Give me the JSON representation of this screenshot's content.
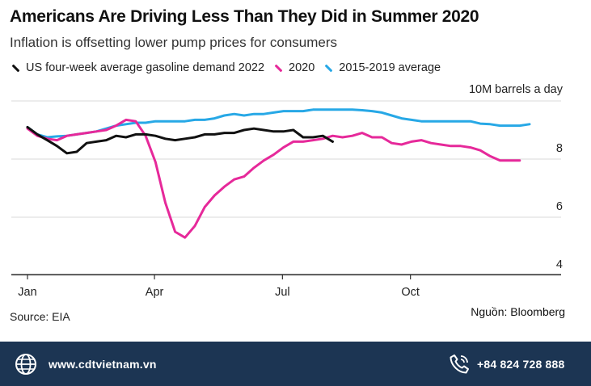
{
  "colors": {
    "us2022": "#111111",
    "y2020": "#e6299a",
    "avg": "#27a8e6",
    "grid": "#d9d9d9",
    "footer_bg": "#1c3553"
  },
  "header": {
    "title": "Americans Are Driving Less Than They Did in Summer 2020",
    "subtitle": "Inflation is offsetting lower pump prices for consumers"
  },
  "footer": {
    "source": "Source: EIA",
    "credit": "Nguồn: Bloomberg",
    "website": "www.cdtvietnam.vn",
    "phone": "+84 824 728 888",
    "website_icon": "globe-icon",
    "phone_icon": "phone-icon"
  },
  "chart_data": {
    "type": "line",
    "title": "Americans Are Driving Less Than They Did in Summer 2020",
    "subtitle": "Inflation is offsetting lower pump prices for consumers",
    "ylabel": "10M barrels a day",
    "unit_label": "10M barrels a day",
    "ylim": [
      3.8,
      10.0
    ],
    "yticks": [
      4,
      6,
      8
    ],
    "xlim": [
      1,
      53
    ],
    "x_unit": "week of year",
    "xticks": [
      {
        "label": "Jan",
        "week": 1
      },
      {
        "label": "Apr",
        "week": 13.9
      },
      {
        "label": "Jul",
        "week": 26.9
      },
      {
        "label": "Oct",
        "week": 39.9
      }
    ],
    "grid": true,
    "legend_position": "top-left",
    "series": [
      {
        "name": "US four-week average gasoline demand 2022",
        "key": "us2022",
        "points": [
          [
            1,
            9.1
          ],
          [
            2,
            8.85
          ],
          [
            3,
            8.65
          ],
          [
            4,
            8.45
          ],
          [
            5,
            8.2
          ],
          [
            6,
            8.25
          ],
          [
            7,
            8.55
          ],
          [
            8,
            8.6
          ],
          [
            9,
            8.65
          ],
          [
            10,
            8.8
          ],
          [
            11,
            8.75
          ],
          [
            12,
            8.85
          ],
          [
            13,
            8.85
          ],
          [
            14,
            8.8
          ],
          [
            15,
            8.7
          ],
          [
            16,
            8.65
          ],
          [
            17,
            8.7
          ],
          [
            18,
            8.75
          ],
          [
            19,
            8.85
          ],
          [
            20,
            8.85
          ],
          [
            21,
            8.9
          ],
          [
            22,
            8.9
          ],
          [
            23,
            9.0
          ],
          [
            24,
            9.05
          ],
          [
            25,
            9.0
          ],
          [
            26,
            8.95
          ],
          [
            27,
            8.95
          ],
          [
            28,
            9.0
          ],
          [
            29,
            8.75
          ],
          [
            30,
            8.75
          ],
          [
            31,
            8.8
          ],
          [
            32,
            8.6
          ]
        ]
      },
      {
        "name": "2020",
        "key": "y2020",
        "points": [
          [
            1,
            9.05
          ],
          [
            2,
            8.8
          ],
          [
            3,
            8.7
          ],
          [
            4,
            8.65
          ],
          [
            5,
            8.8
          ],
          [
            6,
            8.85
          ],
          [
            7,
            8.9
          ],
          [
            8,
            8.95
          ],
          [
            9,
            9.0
          ],
          [
            10,
            9.15
          ],
          [
            11,
            9.35
          ],
          [
            12,
            9.3
          ],
          [
            13,
            8.8
          ],
          [
            14,
            7.9
          ],
          [
            15,
            6.5
          ],
          [
            16,
            5.5
          ],
          [
            17,
            5.3
          ],
          [
            18,
            5.7
          ],
          [
            19,
            6.35
          ],
          [
            20,
            6.75
          ],
          [
            21,
            7.05
          ],
          [
            22,
            7.3
          ],
          [
            23,
            7.4
          ],
          [
            24,
            7.7
          ],
          [
            25,
            7.95
          ],
          [
            26,
            8.15
          ],
          [
            27,
            8.4
          ],
          [
            28,
            8.6
          ],
          [
            29,
            8.6
          ],
          [
            30,
            8.65
          ],
          [
            31,
            8.7
          ],
          [
            32,
            8.8
          ],
          [
            33,
            8.75
          ],
          [
            34,
            8.8
          ],
          [
            35,
            8.9
          ],
          [
            36,
            8.75
          ],
          [
            37,
            8.75
          ],
          [
            38,
            8.55
          ],
          [
            39,
            8.5
          ],
          [
            40,
            8.6
          ],
          [
            41,
            8.65
          ],
          [
            42,
            8.55
          ],
          [
            43,
            8.5
          ],
          [
            44,
            8.45
          ],
          [
            45,
            8.45
          ],
          [
            46,
            8.4
          ],
          [
            47,
            8.3
          ],
          [
            48,
            8.1
          ],
          [
            49,
            7.95
          ],
          [
            50,
            7.95
          ],
          [
            51,
            7.95
          ]
        ]
      },
      {
        "name": "2015-2019 average",
        "key": "avg",
        "points": [
          [
            1,
            9.1
          ],
          [
            2,
            8.85
          ],
          [
            3,
            8.75
          ],
          [
            4,
            8.78
          ],
          [
            5,
            8.8
          ],
          [
            6,
            8.85
          ],
          [
            7,
            8.9
          ],
          [
            8,
            8.95
          ],
          [
            9,
            9.05
          ],
          [
            10,
            9.15
          ],
          [
            11,
            9.2
          ],
          [
            12,
            9.25
          ],
          [
            13,
            9.25
          ],
          [
            14,
            9.3
          ],
          [
            15,
            9.3
          ],
          [
            16,
            9.3
          ],
          [
            17,
            9.3
          ],
          [
            18,
            9.35
          ],
          [
            19,
            9.35
          ],
          [
            20,
            9.4
          ],
          [
            21,
            9.5
          ],
          [
            22,
            9.55
          ],
          [
            23,
            9.5
          ],
          [
            24,
            9.55
          ],
          [
            25,
            9.55
          ],
          [
            26,
            9.6
          ],
          [
            27,
            9.65
          ],
          [
            28,
            9.65
          ],
          [
            29,
            9.65
          ],
          [
            30,
            9.7
          ],
          [
            31,
            9.7
          ],
          [
            32,
            9.7
          ],
          [
            33,
            9.7
          ],
          [
            34,
            9.7
          ],
          [
            35,
            9.68
          ],
          [
            36,
            9.65
          ],
          [
            37,
            9.6
          ],
          [
            38,
            9.5
          ],
          [
            39,
            9.4
          ],
          [
            40,
            9.35
          ],
          [
            41,
            9.3
          ],
          [
            42,
            9.3
          ],
          [
            43,
            9.3
          ],
          [
            44,
            9.3
          ],
          [
            45,
            9.3
          ],
          [
            46,
            9.3
          ],
          [
            47,
            9.22
          ],
          [
            48,
            9.2
          ],
          [
            49,
            9.15
          ],
          [
            50,
            9.15
          ],
          [
            51,
            9.15
          ],
          [
            52,
            9.2
          ]
        ]
      }
    ]
  }
}
